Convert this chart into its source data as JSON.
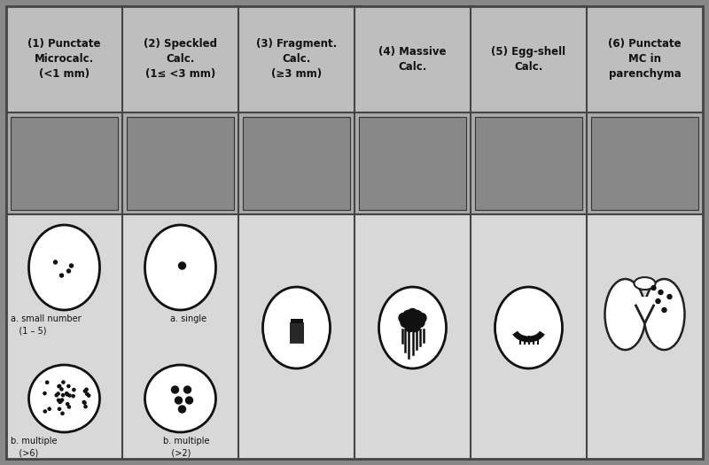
{
  "header_bg": "#bebebe",
  "body_bg": "#d8d8d8",
  "border_color": "#444444",
  "text_color": "#111111",
  "white": "#ffffff",
  "columns": 6,
  "col_labels": [
    "(1) Punctate\nMicrocalc.\n(<1 mm)",
    "(2) Speckled\nCalc.\n(1≤ <3 mm)",
    "(3) Fragment.\nCalc.\n(≥3 mm)",
    "(4) Massive\nCalc.",
    "(5) Egg-shell\nCalc.",
    "(6) Punctate\nMC in\nparenchyma"
  ],
  "fig_width": 8.0,
  "fig_height": 5.25,
  "dpi": 100
}
